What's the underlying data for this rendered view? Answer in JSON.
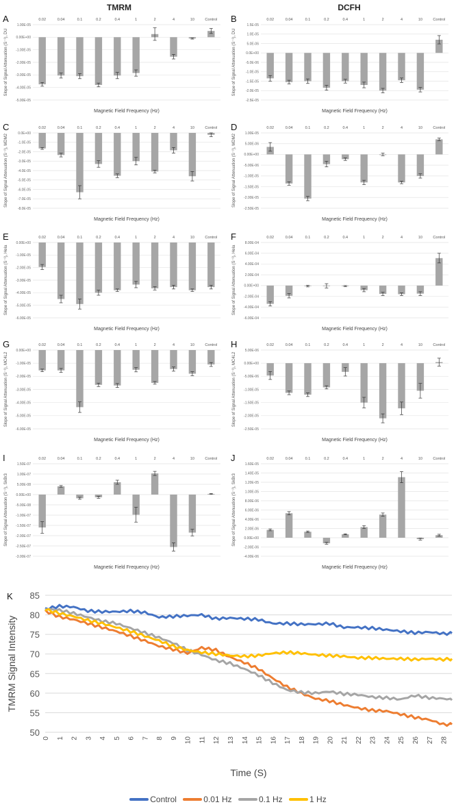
{
  "headers": {
    "left": "TMRM",
    "right": "DCFH"
  },
  "chart_data": [
    {
      "id": "A",
      "type": "bar",
      "title": "TMRM",
      "ylabel": "Slope of Signal Attenuation (S⁻¹), DU",
      "xlabel": "Magnetic Field Frequency (Hz)",
      "categories": [
        "0.02",
        "0.04",
        "0.1",
        "0.2",
        "0.4",
        "1",
        "2",
        "4",
        "10",
        "Control"
      ],
      "values": [
        -3.75e-05,
        -3.05e-05,
        -3.1e-05,
        -3.8e-05,
        -3.05e-05,
        -2.85e-05,
        2.5e-06,
        -1.55e-05,
        -1e-06,
        5e-06
      ],
      "errors": [
        1.5e-06,
        2e-06,
        2e-06,
        1.5e-06,
        2.5e-06,
        2.5e-06,
        5e-06,
        1.8e-06,
        5e-07,
        2e-06
      ],
      "yticks": [
        "1.00E-05",
        "0.00E+00",
        "-1.00E-05",
        "-2.00E-05",
        "-3.00E-05",
        "-4.00E-05",
        "-5.00E-05"
      ],
      "ylim": [
        -5e-05,
        1e-05
      ]
    },
    {
      "id": "B",
      "type": "bar",
      "title": "DCFH",
      "ylabel": "Slope of Signal Attenuation (S⁻¹), DU",
      "xlabel": "Magnetic Field Frequency (Hz)",
      "categories": [
        "0.02",
        "0.04",
        "0.1",
        "0.2",
        "0.4",
        "1",
        "2",
        "4",
        "10",
        "Control"
      ],
      "values": [
        -1.35e-05,
        -1.55e-05,
        -1.5e-05,
        -1.85e-05,
        -1.5e-05,
        -1.7e-05,
        -2e-05,
        -1.45e-05,
        -1.95e-05,
        7e-06
      ],
      "errors": [
        1.5e-06,
        1e-06,
        1.2e-06,
        1.3e-06,
        1e-06,
        1.5e-06,
        1.2e-06,
        1.2e-06,
        1.2e-06,
        2.2e-06
      ],
      "yticks": [
        "1.5E-05",
        "1.0E-05",
        "5.0E-06",
        "0.0E+00",
        "-5.0E-06",
        "-1.0E-05",
        "-1.5E-05",
        "-2.0E-05",
        "-2.5E-05"
      ],
      "ylim": [
        -2.5e-05,
        1.5e-05
      ]
    },
    {
      "id": "C",
      "type": "bar",
      "ylabel": "Slope of Signal Attenuation (S⁻¹), MDM2",
      "xlabel": "Magnetic Field Frequency (Hz)",
      "categories": [
        "0.02",
        "0.04",
        "0.1",
        "0.2",
        "0.4",
        "1",
        "2",
        "4",
        "10",
        "Control"
      ],
      "values": [
        -1.65e-05,
        -2.35e-05,
        -6.3e-05,
        -3.3e-05,
        -4.55e-05,
        -3e-05,
        -4.1e-05,
        -1.85e-05,
        -4.6e-05,
        -2e-06
      ],
      "errors": [
        1e-06,
        2e-06,
        7e-06,
        3.5e-06,
        2e-06,
        4e-06,
        1.5e-06,
        3e-06,
        5e-06,
        2e-06
      ],
      "yticks": [
        "0.0E+00",
        "-1.0E-05",
        "-2.0E-05",
        "-3.0E-05",
        "-4.0E-05",
        "-5.0E-05",
        "-6.0E-05",
        "-7.0E-05",
        "-8.0E-05"
      ],
      "ylim": [
        -8e-05,
        0
      ]
    },
    {
      "id": "D",
      "type": "bar",
      "ylabel": "Slope of Signal Attenuation (S⁻¹), MDM2",
      "xlabel": "Magnetic Field Frequency (Hz)",
      "categories": [
        "0.02",
        "0.04",
        "0.1",
        "0.2",
        "0.4",
        "1",
        "2",
        "4",
        "10",
        "Control"
      ],
      "values": [
        3.5e-06,
        -1.35e-05,
        -2.05e-05,
        -4.5e-06,
        -2.2e-06,
        -1.3e-05,
        0,
        -1.3e-05,
        -1e-05,
        7e-06
      ],
      "errors": [
        2e-06,
        8e-07,
        1e-06,
        1.3e-06,
        6e-07,
        1e-06,
        6e-07,
        6e-07,
        1e-06,
        6e-07
      ],
      "yticks": [
        "1.00E-05",
        "5.00E-06",
        "0.00E+00",
        "-5.00E-06",
        "-1.00E-05",
        "-1.50E-05",
        "-2.00E-05",
        "-2.50E-05"
      ],
      "ylim": [
        -2.5e-05,
        1e-05
      ]
    },
    {
      "id": "E",
      "type": "bar",
      "ylabel": "Slope of Signal Attenuation (S⁻¹), Hela",
      "xlabel": "Magnetic Field Frequency (Hz)",
      "categories": [
        "0.02",
        "0.04",
        "0.1",
        "0.2",
        "0.4",
        "1",
        "2",
        "4",
        "10",
        "Control"
      ],
      "values": [
        -1.95e-05,
        -4.5e-05,
        -4.9e-05,
        -4e-05,
        -3.8e-05,
        -3.35e-05,
        -3.65e-05,
        -3.55e-05,
        -3.8e-05,
        -3.55e-05
      ],
      "errors": [
        2e-06,
        3e-06,
        4e-06,
        2e-06,
        1e-06,
        2.5e-06,
        1.3e-06,
        1.5e-06,
        1e-06,
        1.5e-06
      ],
      "yticks": [
        "0.00E+00",
        "-1.00E-05",
        "-2.00E-05",
        "-3.00E-05",
        "-4.00E-05",
        "-5.00E-05",
        "-6.00E-05"
      ],
      "ylim": [
        -6e-05,
        0
      ]
    },
    {
      "id": "F",
      "type": "bar",
      "ylabel": "Slope of Signal Attenuation (S⁻¹), Hela",
      "xlabel": "Magnetic Field Frequency (Hz)",
      "categories": [
        "0.02",
        "0.04",
        "0.1",
        "0.2",
        "0.4",
        "1",
        "2",
        "4",
        "10",
        "Control"
      ],
      "values": [
        -0.00034,
        -0.00019,
        -1e-05,
        -5e-06,
        -1e-05,
        -8.5e-05,
        -0.000155,
        -0.00016,
        -0.00015,
        0.00051
      ],
      "errors": [
        4e-05,
        4e-05,
        1.5e-05,
        4e-05,
        1e-05,
        3e-05,
        3e-05,
        2.5e-05,
        3.5e-05,
        9e-05
      ],
      "yticks": [
        "8.00E-04",
        "6.00E-04",
        "4.00E-04",
        "2.00E-04",
        "0.00E+00",
        "-2.00E-04",
        "-4.00E-04",
        "-6.00E-04"
      ],
      "ylim": [
        -0.0006,
        0.0008
      ]
    },
    {
      "id": "G",
      "type": "bar",
      "ylabel": "Slope of Signal Attenuation (S⁻¹), MC4L2",
      "xlabel": "Magnetic Field Frequency (Hz)",
      "categories": [
        "0.02",
        "0.04",
        "0.1",
        "0.2",
        "0.4",
        "1",
        "2",
        "4",
        "10",
        "Control"
      ],
      "values": [
        -1.55e-05,
        -1.55e-05,
        -4.35e-05,
        -2.65e-05,
        -2.7e-05,
        -1.5e-05,
        -2.5e-05,
        -1.45e-05,
        -1.8e-05,
        -1.1e-05
      ],
      "errors": [
        1e-06,
        1.5e-06,
        4e-06,
        1.3e-06,
        1.5e-06,
        1.6e-06,
        1e-06,
        1.6e-06,
        1.5e-06,
        1.5e-06
      ],
      "yticks": [
        "0.00E+00",
        "-1.00E-05",
        "-2.00E-05",
        "-3.00E-05",
        "-4.00E-05",
        "-5.00E-05",
        "-6.00E-05"
      ],
      "ylim": [
        -6e-05,
        0
      ]
    },
    {
      "id": "H",
      "type": "bar",
      "ylabel": "Slope of Signal Attenuation (S⁻¹), MC4L2",
      "xlabel": "Magnetic Field Frequency (Hz)",
      "categories": [
        "0.02",
        "0.04",
        "0.1",
        "0.2",
        "0.4",
        "1",
        "2",
        "4",
        "10",
        "Control"
      ],
      "values": [
        -4.7e-06,
        -1.13e-05,
        -1.2e-05,
        -9.2e-06,
        -3.3e-06,
        -1.5e-05,
        -2.1e-05,
        -1.72e-05,
        -1.05e-05,
        4e-07
      ],
      "errors": [
        1.5e-06,
        7e-07,
        7e-07,
        6e-07,
        1.6e-06,
        2e-06,
        1.7e-06,
        2.4e-06,
        2.8e-06,
        1.5e-06
      ],
      "yticks": [
        "5.00E-06",
        "0.00E+00",
        "-5.00E-06",
        "-1.00E-05",
        "-1.50E-05",
        "-2.00E-05",
        "-2.50E-05"
      ],
      "ylim": [
        -2.5e-05,
        5e-06
      ]
    },
    {
      "id": "I",
      "type": "bar",
      "ylabel": "Slope of Signal Attenuation (S⁻¹), SkBr3",
      "xlabel": "Magnetic Field Frequency (Hz)",
      "categories": [
        "0.02",
        "0.04",
        "0.1",
        "0.2",
        "0.4",
        "1",
        "2",
        "4",
        "10",
        "Control"
      ],
      "values": [
        -1.6e-07,
        4e-08,
        -1.8e-08,
        -1.3e-08,
        6e-08,
        -9.8e-08,
        1.03e-07,
        -2.55e-07,
        -1.85e-07,
        3e-09
      ],
      "errors": [
        2.8e-08,
        4e-09,
        5e-09,
        5e-09,
        1e-08,
        3.6e-08,
        1e-08,
        2e-08,
        1.6e-08,
        2e-09
      ],
      "yticks": [
        "1.50E-07",
        "1.00E-07",
        "5.00E-08",
        "0.00E+00",
        "-5.00E-08",
        "-1.00E-07",
        "-1.50E-07",
        "-2.00E-07",
        "-2.50E-07",
        "-3.00E-07"
      ],
      "ylim": [
        -3e-07,
        1.5e-07
      ]
    },
    {
      "id": "J",
      "type": "bar",
      "ylabel": "Slope of Signal Attenuation (S⁻¹), SkBr3",
      "xlabel": "Magnetic Field Frequency (Hz)",
      "categories": [
        "0.02",
        "0.04",
        "0.1",
        "0.2",
        "0.4",
        "1",
        "2",
        "4",
        "10",
        "Control"
      ],
      "values": [
        1.7e-06,
        5.3e-06,
        1.3e-06,
        -1.2e-06,
        7.5e-07,
        2.3e-06,
        5e-06,
        1.31e-05,
        -3e-07,
        5.5e-07
      ],
      "errors": [
        2e-07,
        3.5e-07,
        1.5e-07,
        2e-07,
        1e-07,
        3e-07,
        3.5e-07,
        1.2e-06,
        2e-07,
        2e-07
      ],
      "yticks": [
        "1.60E-05",
        "1.40E-05",
        "1.20E-05",
        "1.00E-05",
        "8.00E-06",
        "6.00E-06",
        "4.00E-06",
        "2.00E-06",
        "0.00E+00",
        "-2.00E-06",
        "-4.00E-06"
      ],
      "ylim": [
        -4e-06,
        1.6e-05
      ]
    },
    {
      "id": "K",
      "type": "line",
      "title": "",
      "xlabel": "Time (S)",
      "ylabel": "TMRM Signal Intensity",
      "x": [
        0,
        1,
        2,
        3,
        4,
        5,
        6,
        7,
        8,
        9,
        10,
        11,
        12,
        13,
        14,
        15,
        16,
        17,
        18,
        19,
        20,
        21,
        22,
        23,
        24,
        25,
        26,
        27,
        28,
        29
      ],
      "xticks": [
        "0",
        "1",
        "2",
        "3",
        "4",
        "5",
        "6",
        "7",
        "8",
        "9",
        "10",
        "11",
        "12",
        "13",
        "14",
        "15",
        "16",
        "17",
        "18",
        "19",
        "20",
        "21",
        "22",
        "23",
        "24",
        "25",
        "26",
        "27",
        "28"
      ],
      "yticks": [
        "85",
        "80",
        "75",
        "70",
        "65",
        "60",
        "55",
        "50"
      ],
      "ylim": [
        50,
        85
      ],
      "series": [
        {
          "name": "Control",
          "color": "#4472C4",
          "values": [
            81.5,
            82.2,
            82.0,
            81.0,
            80.8,
            80.8,
            81.0,
            80.6,
            79.4,
            79.6,
            79.8,
            80.0,
            79.0,
            79.2,
            79.0,
            78.8,
            77.8,
            77.8,
            77.6,
            77.6,
            77.8,
            76.8,
            76.8,
            76.6,
            76.2,
            75.8,
            75.4,
            75.6,
            75.2,
            75.3
          ]
        },
        {
          "name": "0.01 Hz",
          "color": "#ED7D31",
          "values": [
            81.0,
            79.5,
            78.8,
            77.8,
            76.8,
            75.8,
            74.6,
            73.4,
            72.0,
            71.2,
            70.2,
            71.6,
            71.0,
            69.2,
            67.8,
            66.2,
            63.8,
            61.6,
            60.0,
            58.6,
            58.0,
            57.0,
            56.2,
            55.6,
            55.4,
            54.6,
            53.8,
            53.2,
            52.0,
            52.0
          ]
        },
        {
          "name": "0.1 Hz",
          "color": "#A5A5A5",
          "values": [
            81.5,
            81.2,
            80.4,
            79.4,
            78.4,
            77.8,
            76.6,
            75.4,
            74.2,
            72.8,
            71.0,
            69.8,
            68.4,
            67.6,
            66.2,
            64.6,
            62.6,
            60.8,
            60.2,
            60.0,
            60.4,
            59.8,
            59.6,
            59.0,
            58.8,
            58.4,
            59.4,
            58.8,
            58.6,
            58.2
          ]
        },
        {
          "name": "1 Hz",
          "color": "#FFC000",
          "values": [
            81.4,
            80.4,
            79.6,
            78.6,
            77.8,
            76.8,
            75.8,
            74.6,
            73.4,
            72.0,
            71.0,
            70.4,
            70.0,
            69.6,
            69.4,
            69.6,
            70.2,
            70.4,
            70.2,
            69.8,
            69.6,
            69.4,
            69.0,
            69.0,
            68.8,
            68.8,
            68.6,
            68.8,
            68.6,
            68.8
          ]
        }
      ]
    }
  ],
  "legend": [
    {
      "label": "Control",
      "color": "#4472C4"
    },
    {
      "label": "0.01 Hz",
      "color": "#ED7D31"
    },
    {
      "label": "0.1 Hz",
      "color": "#A5A5A5"
    },
    {
      "label": "1 Hz",
      "color": "#FFC000"
    }
  ]
}
